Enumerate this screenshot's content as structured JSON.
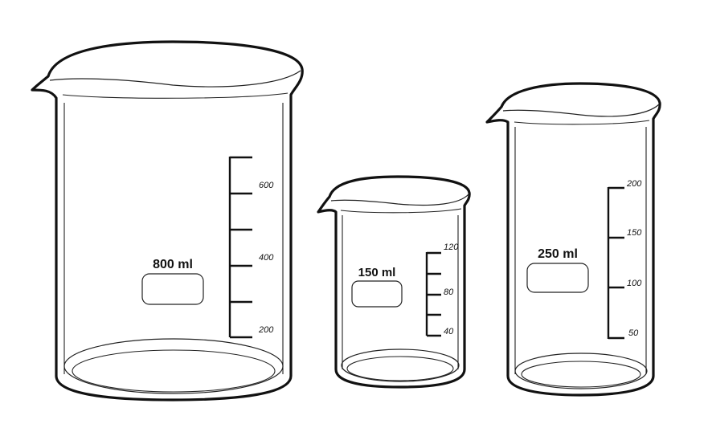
{
  "beakers": [
    {
      "capacity_label": "800 ml",
      "scale_labels": [
        "600",
        "400",
        "200"
      ]
    },
    {
      "capacity_label": "150 ml",
      "scale_labels": [
        "120",
        "80",
        "40"
      ]
    },
    {
      "capacity_label": "250 ml",
      "scale_labels": [
        "200",
        "150",
        "100",
        "50"
      ]
    }
  ]
}
